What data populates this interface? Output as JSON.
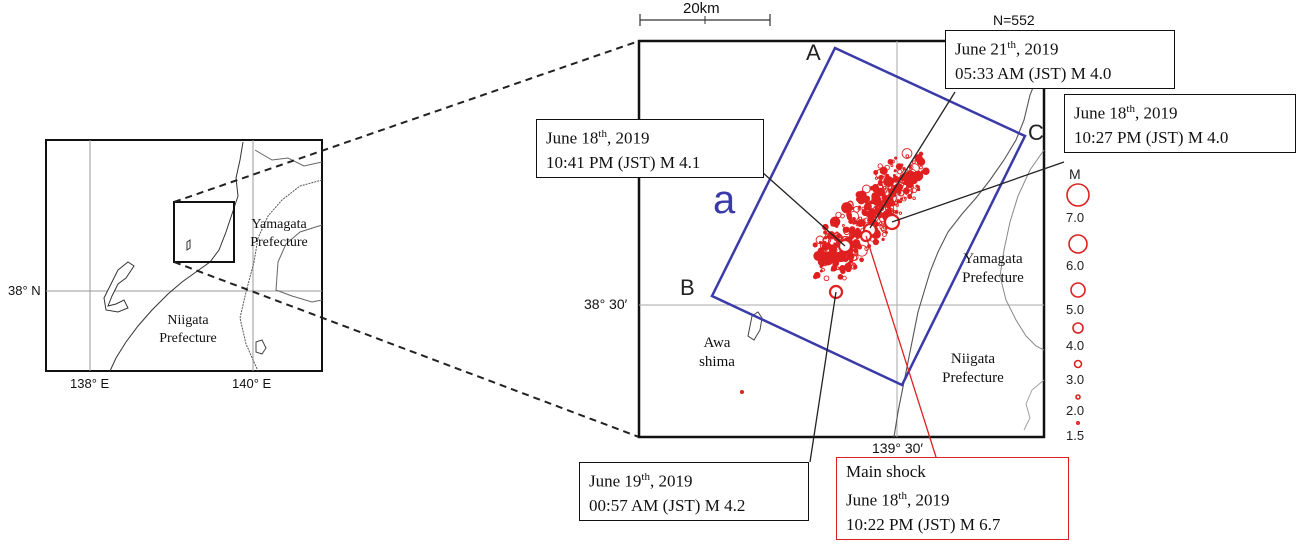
{
  "inset_map": {
    "lat_label": "38° N",
    "lon_labels": [
      "138° E",
      "140° E"
    ],
    "region_labels": [
      {
        "line1": "Yamagata",
        "line2": "Prefecture"
      },
      {
        "line1": "Niigata",
        "line2": "Prefecture"
      }
    ]
  },
  "main_map": {
    "scale_label": "20km",
    "count_label": "N=552",
    "lat_label": "38° 30′",
    "lon_label": "139° 30′",
    "rect_label": "a",
    "corner_labels": [
      "A",
      "B",
      "C"
    ],
    "region_labels": [
      {
        "line1": "Yamagata",
        "line2": "Prefecture"
      },
      {
        "line1": "Niigata",
        "line2": "Prefecture"
      },
      {
        "line1": "Awa",
        "line2": "shima"
      }
    ],
    "magnitude_legend": {
      "title": "M",
      "values": [
        "7.0",
        "6.0",
        "5.0",
        "4.0",
        "3.0",
        "2.0",
        "1.5"
      ]
    }
  },
  "callouts": [
    {
      "date_main": "June 21",
      "date_sup": "th",
      "date_year": ", 2019",
      "time": "05:33 AM (JST) M 4.0"
    },
    {
      "date_main": "June 18",
      "date_sup": "th",
      "date_year": ", 2019",
      "time": "10:41 PM (JST) M 4.1"
    },
    {
      "date_main": "June 18",
      "date_sup": "th",
      "date_year": ", 2019",
      "time": "10:27 PM (JST) M 4.0"
    },
    {
      "date_main": "June 19",
      "date_sup": "th",
      "date_year": ", 2019",
      "time": "00:57 AM (JST) M 4.2"
    },
    {
      "title": "Main shock",
      "date_main": "June 18",
      "date_sup": "th",
      "date_year": ", 2019",
      "time": "10:22 PM (JST) M 6.7"
    }
  ],
  "colors": {
    "frame": "#111111",
    "grid": "#999999",
    "coast": "#444444",
    "rect": "#3a3aa8",
    "quake": "#e02020"
  }
}
